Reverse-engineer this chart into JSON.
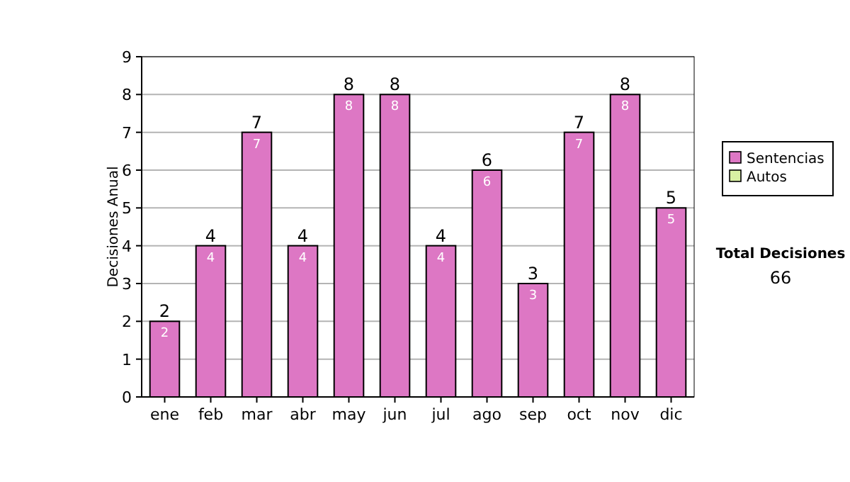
{
  "chart_data": {
    "type": "bar",
    "ylabel": "Decisiones Anual",
    "categories": [
      "ene",
      "feb",
      "mar",
      "abr",
      "may",
      "jun",
      "jul",
      "ago",
      "sep",
      "oct",
      "nov",
      "dic"
    ],
    "series": [
      {
        "name": "Sentencias",
        "color": "#dd77c4",
        "values": [
          2,
          4,
          7,
          4,
          8,
          8,
          4,
          6,
          3,
          7,
          8,
          5
        ]
      },
      {
        "name": "Autos",
        "color": "#d9f0a3",
        "values": [
          null,
          null,
          null,
          null,
          null,
          null,
          null,
          null,
          null,
          null,
          null,
          null
        ]
      }
    ],
    "stacked": true,
    "data_labels": true,
    "totals": [
      "2",
      "4",
      "7",
      "4",
      "8",
      "8",
      "4",
      "6",
      "3",
      "7",
      "8",
      "5"
    ],
    "ylim": [
      0,
      9
    ],
    "yticks": [
      0,
      1,
      2,
      3,
      4,
      5,
      6,
      7,
      8,
      9
    ],
    "grid": "y",
    "legend": "right",
    "annotations": [
      "Total Decisiones",
      "66"
    ]
  }
}
